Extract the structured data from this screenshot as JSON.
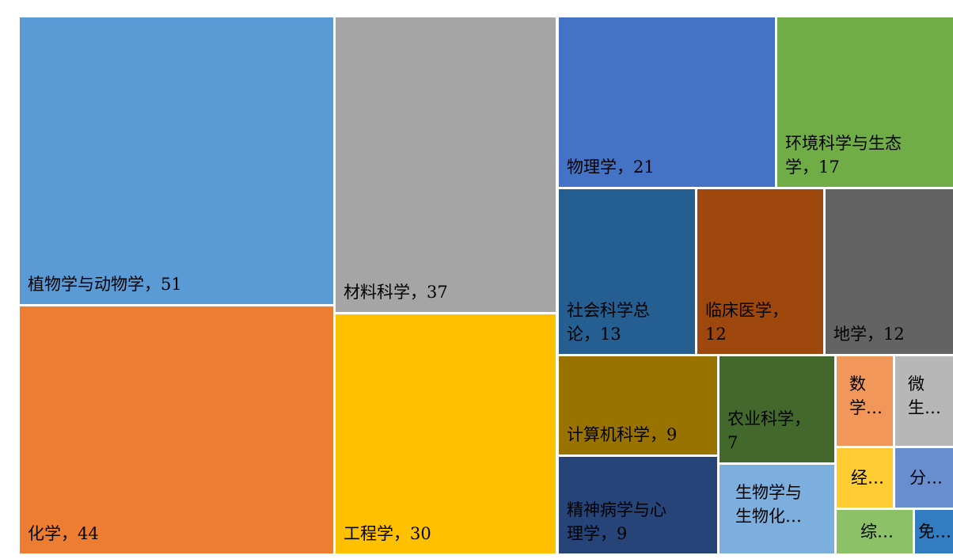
{
  "chart_data": {
    "type": "treemap",
    "title": "",
    "items": [
      {
        "name": "植物学与动物学",
        "value": 51,
        "color": "#5b9bd5",
        "label_lines": [
          "植物学与动物学，51"
        ]
      },
      {
        "name": "化学",
        "value": 44,
        "color": "#ed7d31",
        "label_lines": [
          "化学，44"
        ]
      },
      {
        "name": "材料科学",
        "value": 37,
        "color": "#a5a5a5",
        "label_lines": [
          "材料科学，37"
        ]
      },
      {
        "name": "工程学",
        "value": 30,
        "color": "#ffc000",
        "label_lines": [
          "工程学，30"
        ]
      },
      {
        "name": "物理学",
        "value": 21,
        "color": "#4472c4",
        "label_lines": [
          "物理学，21"
        ]
      },
      {
        "name": "环境科学与生态学",
        "value": 17,
        "color": "#70ad47",
        "label_lines": [
          "环境科学与生态",
          "学，17"
        ]
      },
      {
        "name": "社会科学总论",
        "value": 13,
        "color": "#255e91",
        "label_lines": [
          "社会科学总",
          "论，13"
        ]
      },
      {
        "name": "临床医学",
        "value": 12,
        "color": "#9e480e",
        "label_lines": [
          "临床医学，",
          "12"
        ]
      },
      {
        "name": "地学",
        "value": 12,
        "color": "#636363",
        "label_lines": [
          "地学，12"
        ]
      },
      {
        "name": "计算机科学",
        "value": 9,
        "color": "#997300",
        "label_lines": [
          "计算机科学，9"
        ]
      },
      {
        "name": "精神病学与心理学",
        "value": 9,
        "color": "#264478",
        "label_lines": [
          "精神病学与心",
          "理学，9"
        ]
      },
      {
        "name": "农业科学",
        "value": 7,
        "color": "#43682b",
        "label_lines": [
          "农业科学，",
          "7"
        ]
      },
      {
        "name": "生物学与生物化…",
        "value": null,
        "color": "#7cafdd",
        "label_lines": [
          "生物学与",
          "生物化…"
        ]
      },
      {
        "name": "数学…",
        "value": null,
        "color": "#f1975a",
        "label_lines": [
          "数",
          "学…"
        ]
      },
      {
        "name": "微生…",
        "value": null,
        "color": "#b7b7b7",
        "label_lines": [
          "微",
          "生…"
        ]
      },
      {
        "name": "经…",
        "value": null,
        "color": "#ffcd33",
        "label_lines": [
          "经…"
        ]
      },
      {
        "name": "分…",
        "value": null,
        "color": "#698ed0",
        "label_lines": [
          "分…"
        ]
      },
      {
        "name": "综…",
        "value": null,
        "color": "#8cc168",
        "label_lines": [
          "综…"
        ]
      },
      {
        "name": "免…",
        "value": null,
        "color": "#327dc2",
        "label_lines": [
          "免…"
        ]
      }
    ]
  }
}
